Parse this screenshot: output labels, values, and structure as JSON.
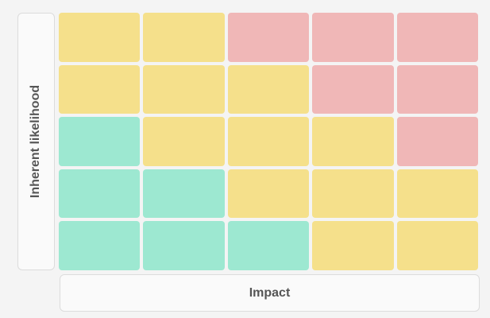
{
  "y_label": "Inherent likelihood",
  "x_label": "Impact",
  "grid": [
    [
      "#f5e08b",
      "#f5e08b",
      "#f0b7b7",
      "#f0b7b7",
      "#f0b7b7"
    ],
    [
      "#f5e08b",
      "#f5e08b",
      "#f5e08b",
      "#f0b7b7",
      "#f0b7b7"
    ],
    [
      "#9de8d1",
      "#f5e08b",
      "#f5e08b",
      "#f5e08b",
      "#f0b7b7"
    ],
    [
      "#9de8d1",
      "#9de8d1",
      "#f5e08b",
      "#f5e08b",
      "#f5e08b"
    ],
    [
      "#9de8d1",
      "#9de8d1",
      "#9de8d1",
      "#f5e08b",
      "#f5e08b"
    ]
  ]
}
